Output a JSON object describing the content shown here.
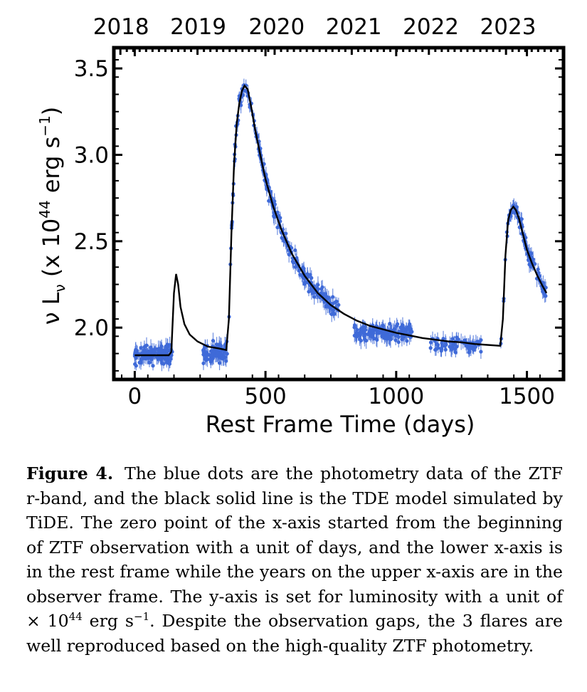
{
  "chart_data": {
    "type": "scatter",
    "xlabel": "Rest Frame Time (days)",
    "ylabel_parts": [
      "ν L",
      "ν",
      " (x 10",
      "44",
      " erg s",
      "−1",
      ")"
    ],
    "xlim": [
      -80,
      1640
    ],
    "ylim": [
      1.7,
      3.62
    ],
    "x_ticks": [
      0,
      500,
      1000,
      1500
    ],
    "y_ticks": [
      2.0,
      2.5,
      3.0,
      3.5
    ],
    "top_axis_labels": [
      "2018",
      "2019",
      "2020",
      "2021",
      "2022",
      "2023"
    ],
    "top_axis_positions": [
      -55,
      240,
      540,
      835,
      1130,
      1425
    ],
    "data_color": "#3f6ad8",
    "model_color": "#000000",
    "series": [
      {
        "kind": "points",
        "segments": [
          {
            "start": 0,
            "end": 145,
            "level": 1.84,
            "scatter": 0.045,
            "count": 120
          },
          {
            "start": 260,
            "end": 355,
            "level": 1.86,
            "scatter": 0.045,
            "count": 85
          },
          {
            "start": 840,
            "end": 1060,
            "level": 1.97,
            "scatter": 0.04,
            "count": 160
          },
          {
            "start": 1130,
            "end": 1330,
            "level": 1.9,
            "scatter": 0.035,
            "count": 70
          }
        ],
        "model_follow_ranges": [
          [
            360,
            780
          ],
          [
            1400,
            1575
          ]
        ],
        "model_follow_scatter": 0.045,
        "model_follow_count": 320
      },
      {
        "kind": "model",
        "x": [
          0,
          130,
          140,
          150,
          158,
          166,
          175,
          190,
          210,
          240,
          280,
          320,
          350,
          360,
          370,
          380,
          390,
          400,
          410,
          420,
          432,
          445,
          460,
          480,
          500,
          530,
          560,
          600,
          650,
          700,
          750,
          800,
          850,
          900,
          950,
          1000,
          1050,
          1100,
          1150,
          1200,
          1250,
          1300,
          1350,
          1398,
          1408,
          1418,
          1428,
          1438,
          1448,
          1458,
          1470,
          1485,
          1500,
          1520,
          1540,
          1560,
          1575
        ],
        "y": [
          1.84,
          1.84,
          1.86,
          2.2,
          2.31,
          2.25,
          2.12,
          2.02,
          1.96,
          1.92,
          1.89,
          1.88,
          1.87,
          2.05,
          2.55,
          2.95,
          3.18,
          3.3,
          3.37,
          3.4,
          3.38,
          3.28,
          3.15,
          3.0,
          2.86,
          2.7,
          2.57,
          2.43,
          2.3,
          2.2,
          2.13,
          2.08,
          2.04,
          2.01,
          1.99,
          1.97,
          1.955,
          1.94,
          1.93,
          1.92,
          1.915,
          1.905,
          1.9,
          1.895,
          2.05,
          2.42,
          2.62,
          2.68,
          2.7,
          2.68,
          2.63,
          2.54,
          2.45,
          2.37,
          2.3,
          2.24,
          2.2
        ]
      }
    ]
  },
  "caption": {
    "label": "Figure 4.",
    "part1": "The blue dots are the photometry data of the ZTF r-band, and the black solid line is the TDE model simulated by TiDE. The zero point of the x-axis started from the beginning of ZTF observation with a unit of days, and the lower x-axis is in the rest frame while the years on the upper x-axis are in the observer frame.  The y-axis is set for luminosity with a unit of × 10",
    "exp1": "44",
    "part2": " erg s",
    "exp2": "−1",
    "part3": ".  Despite the observation gaps, the 3 flares are well reproduced based on the high-quality ZTF photometry."
  }
}
